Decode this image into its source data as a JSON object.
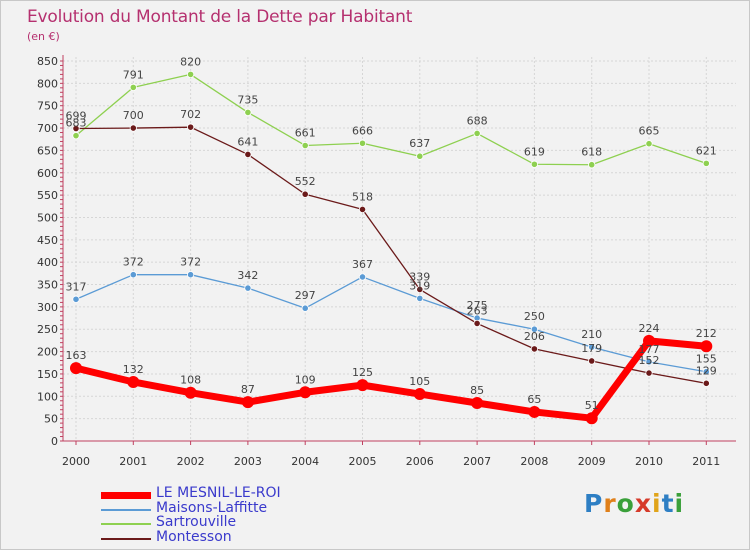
{
  "title": "Evolution du Montant de la Dette par Habitant",
  "subtitle": "(en €)",
  "logo": {
    "text": "Proxiti",
    "letters": [
      "P",
      "r",
      "o",
      "x",
      "i",
      "t",
      "i"
    ],
    "colors": [
      "#2e7fc4",
      "#e0801a",
      "#3aa03a",
      "#d63a2a",
      "#e0a41a",
      "#2e7fc4",
      "#3aa03a"
    ]
  },
  "chart_data": {
    "type": "line",
    "title": "Evolution du Montant de la Dette par Habitant",
    "subtitle": "(en €)",
    "x": [
      "2000",
      "2001",
      "2002",
      "2003",
      "2004",
      "2005",
      "2006",
      "2007",
      "2008",
      "2009",
      "2010",
      "2011"
    ],
    "ylim": [
      0,
      850
    ],
    "yticks": [
      0,
      50,
      100,
      150,
      200,
      250,
      300,
      350,
      400,
      450,
      500,
      550,
      600,
      650,
      700,
      750,
      800,
      850
    ],
    "grid": true,
    "legend_position": "bottom-left",
    "series": [
      {
        "name": "LE MESNIL-LE-ROI",
        "color": "#ff0000",
        "values": [
          163,
          132,
          108,
          87,
          109,
          125,
          105,
          85,
          65,
          51,
          224,
          212
        ]
      },
      {
        "name": "Maisons-Laffitte",
        "color": "#5b9bd5",
        "values": [
          317,
          372,
          372,
          342,
          297,
          367,
          319,
          275,
          250,
          210,
          177,
          155
        ]
      },
      {
        "name": "Sartrouville",
        "color": "#8ed050",
        "values": [
          683,
          791,
          820,
          735,
          661,
          666,
          637,
          688,
          619,
          618,
          665,
          621
        ]
      },
      {
        "name": "Montesson",
        "color": "#6b1a1a",
        "values": [
          699,
          700,
          702,
          641,
          552,
          518,
          339,
          263,
          206,
          179,
          152,
          129
        ]
      }
    ]
  }
}
